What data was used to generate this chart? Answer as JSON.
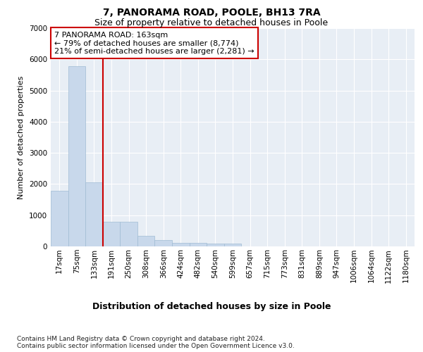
{
  "title1": "7, PANORAMA ROAD, POOLE, BH13 7RA",
  "title2": "Size of property relative to detached houses in Poole",
  "xlabel": "Distribution of detached houses by size in Poole",
  "ylabel": "Number of detached properties",
  "bin_labels": [
    "17sqm",
    "75sqm",
    "133sqm",
    "191sqm",
    "250sqm",
    "308sqm",
    "366sqm",
    "424sqm",
    "482sqm",
    "540sqm",
    "599sqm",
    "657sqm",
    "715sqm",
    "773sqm",
    "831sqm",
    "889sqm",
    "947sqm",
    "1006sqm",
    "1064sqm",
    "1122sqm",
    "1180sqm"
  ],
  "bar_values": [
    1780,
    5780,
    2060,
    800,
    800,
    340,
    200,
    120,
    105,
    95,
    80,
    0,
    0,
    0,
    0,
    0,
    0,
    0,
    0,
    0,
    0
  ],
  "bar_color": "#c8d8eb",
  "bar_edge_color": "#a0bcd4",
  "property_line_color": "#cc0000",
  "property_line_x": 2.5,
  "annotation_line1": "7 PANORAMA ROAD: 163sqm",
  "annotation_line2": "← 79% of detached houses are smaller (8,774)",
  "annotation_line3": "21% of semi-detached houses are larger (2,281) →",
  "annotation_box_facecolor": "#ffffff",
  "annotation_box_edgecolor": "#cc0000",
  "ylim": [
    0,
    7000
  ],
  "yticks": [
    0,
    1000,
    2000,
    3000,
    4000,
    5000,
    6000,
    7000
  ],
  "footnote1": "Contains HM Land Registry data © Crown copyright and database right 2024.",
  "footnote2": "Contains public sector information licensed under the Open Government Licence v3.0.",
  "plot_bg": "#e8eef5",
  "grid_color": "#ffffff",
  "title1_fontsize": 10,
  "title2_fontsize": 9,
  "ylabel_fontsize": 8,
  "xlabel_fontsize": 9,
  "tick_fontsize": 7.5,
  "footnote_fontsize": 6.5,
  "annot_fontsize": 8
}
